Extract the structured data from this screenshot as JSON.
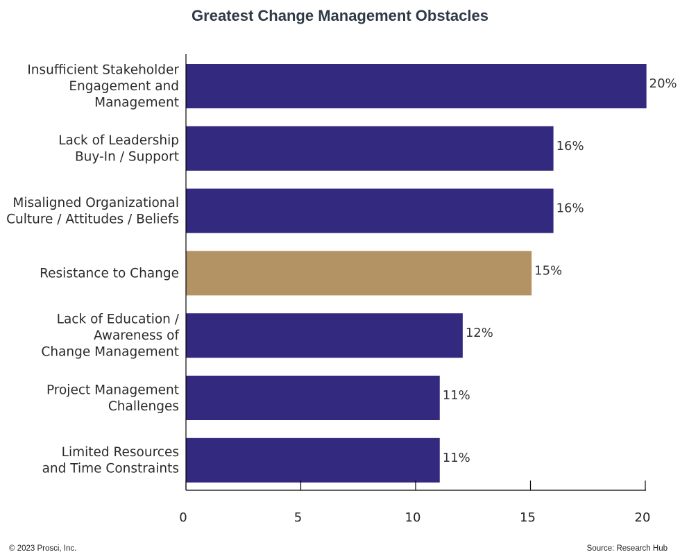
{
  "chart_data": {
    "type": "bar",
    "orientation": "horizontal",
    "title": "Greatest Change Management Obstacles",
    "categories": [
      [
        "Insufficient Stakeholder",
        "Engagement and",
        "Management"
      ],
      [
        "Lack of Leadership",
        "Buy-In / Support"
      ],
      [
        "Misaligned Organizational",
        "Culture / Attitudes / Beliefs"
      ],
      [
        "Resistance to Change"
      ],
      [
        "Lack of Education /",
        "Awareness of",
        "Change Management"
      ],
      [
        "Project Management",
        "Challenges"
      ],
      [
        "Limited Resources",
        "and Time Constraints"
      ]
    ],
    "values": [
      20,
      16,
      16,
      15,
      12,
      11,
      11
    ],
    "value_labels": [
      "20%",
      "16%",
      "16%",
      "15%",
      "12%",
      "11%",
      "11%"
    ],
    "plotted_values": [
      20.05,
      16.0,
      16.0,
      15.05,
      12.05,
      11.05,
      11.05
    ],
    "bar_colors": [
      "#332a80",
      "#332a80",
      "#332a80",
      "#b39264",
      "#332a80",
      "#332a80",
      "#332a80"
    ],
    "xlim": [
      0,
      20
    ],
    "xticks": [
      0,
      5,
      10,
      15,
      20
    ],
    "xlabel": "",
    "ylabel": "",
    "grid": false,
    "legend": "none"
  },
  "footer": {
    "copyright": "© 2023 Prosci, Inc.",
    "source": "Source: Research Hub"
  }
}
